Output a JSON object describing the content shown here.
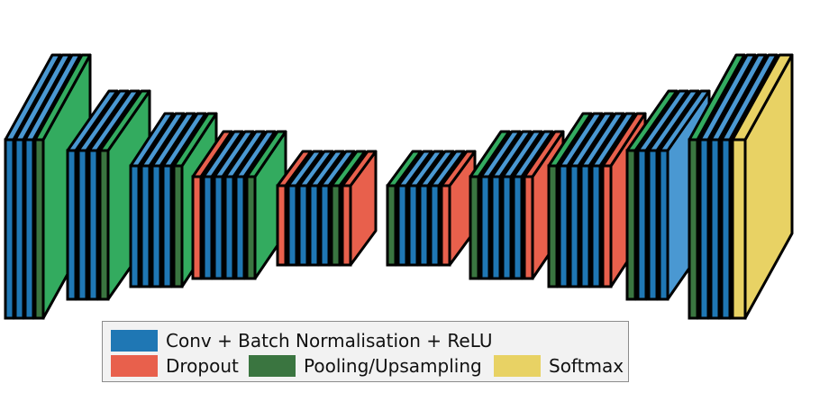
{
  "colors": {
    "conv": "#1f77b4",
    "conv_light": "#4a98d2",
    "dropout": "#e8604c",
    "pool": "#3a7540",
    "pool_light": "#33ab5f",
    "softmax": "#e8d264"
  },
  "layers": [
    {
      "type": "conv"
    },
    {
      "type": "conv"
    },
    {
      "type": "conv"
    },
    {
      "type": "pool"
    },
    {
      "type": "conv"
    },
    {
      "type": "conv"
    },
    {
      "type": "conv"
    },
    {
      "type": "pool"
    },
    {
      "type": "conv"
    },
    {
      "type": "conv"
    },
    {
      "type": "conv"
    },
    {
      "type": "conv"
    },
    {
      "type": "pool"
    },
    {
      "type": "dropout"
    },
    {
      "type": "conv"
    },
    {
      "type": "conv"
    },
    {
      "type": "conv"
    },
    {
      "type": "conv"
    },
    {
      "type": "pool"
    },
    {
      "type": "dropout"
    },
    {
      "type": "conv"
    },
    {
      "type": "conv"
    },
    {
      "type": "conv"
    },
    {
      "type": "conv"
    },
    {
      "type": "pool"
    },
    {
      "type": "dropout"
    },
    {
      "type": "pool"
    },
    {
      "type": "conv"
    },
    {
      "type": "conv"
    },
    {
      "type": "conv"
    },
    {
      "type": "conv"
    },
    {
      "type": "dropout"
    },
    {
      "type": "pool"
    },
    {
      "type": "conv"
    },
    {
      "type": "conv"
    },
    {
      "type": "conv"
    },
    {
      "type": "conv"
    },
    {
      "type": "dropout"
    },
    {
      "type": "pool"
    },
    {
      "type": "conv"
    },
    {
      "type": "conv"
    },
    {
      "type": "conv"
    },
    {
      "type": "conv"
    },
    {
      "type": "dropout"
    },
    {
      "type": "pool"
    },
    {
      "type": "conv"
    },
    {
      "type": "conv"
    },
    {
      "type": "conv"
    },
    {
      "type": "pool"
    },
    {
      "type": "conv"
    },
    {
      "type": "conv"
    },
    {
      "type": "conv"
    },
    {
      "type": "softmax"
    }
  ],
  "legend": {
    "conv_label": "Conv + Batch Normalisation + ReLU",
    "dropout_label": "Dropout",
    "pool_label": "Pooling/Upsampling",
    "softmax_label": "Softmax"
  }
}
